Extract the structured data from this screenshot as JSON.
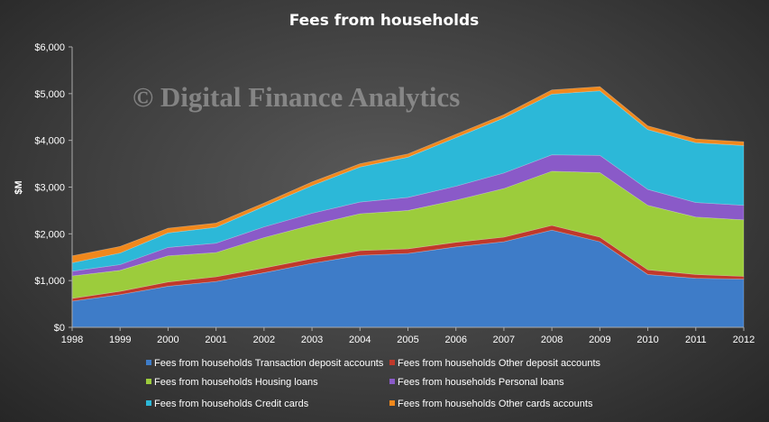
{
  "chart_data": {
    "type": "area",
    "stacked": true,
    "title": "Fees from households",
    "ylabel": "$M",
    "xlabel": "",
    "x": [
      "1998",
      "1999",
      "2000",
      "2001",
      "2002",
      "2003",
      "2004",
      "2005",
      "2006",
      "2007",
      "2008",
      "2009",
      "2010",
      "2011",
      "2012"
    ],
    "ylim": [
      0,
      6000
    ],
    "yticks": [
      0,
      1000,
      2000,
      3000,
      4000,
      5000,
      6000
    ],
    "ytick_labels": [
      "$0",
      "$1,000",
      "$2,000",
      "$3,000",
      "$4,000",
      "$5,000",
      "$6,000"
    ],
    "grid": false,
    "legend_position": "bottom",
    "series": [
      {
        "name": "Fees from households Transaction deposit accounts",
        "color": "#3e7cc8",
        "values": [
          560,
          700,
          880,
          980,
          1170,
          1370,
          1540,
          1580,
          1720,
          1830,
          2080,
          1830,
          1130,
          1050,
          1030
        ]
      },
      {
        "name": "Fees from households Other deposit accounts",
        "color": "#c0392b",
        "values": [
          60,
          70,
          90,
          100,
          100,
          100,
          100,
          100,
          100,
          100,
          100,
          100,
          100,
          80,
          60
        ]
      },
      {
        "name": "Fees from households Housing loans",
        "color": "#9ccc3c",
        "values": [
          480,
          450,
          560,
          520,
          650,
          720,
          790,
          820,
          900,
          1040,
          1160,
          1380,
          1380,
          1230,
          1210
        ]
      },
      {
        "name": "Fees from households Personal loans",
        "color": "#8a5ac8",
        "values": [
          100,
          120,
          180,
          200,
          230,
          250,
          250,
          280,
          300,
          330,
          350,
          370,
          340,
          310,
          310
        ]
      },
      {
        "name": "Fees from households Credit cards",
        "color": "#2cb8d8",
        "values": [
          180,
          250,
          310,
          340,
          440,
          590,
          750,
          860,
          1040,
          1180,
          1300,
          1380,
          1280,
          1280,
          1280
        ]
      },
      {
        "name": "Fees from households Other cards accounts",
        "color": "#f0881c",
        "values": [
          150,
          140,
          100,
          90,
          70,
          80,
          70,
          70,
          70,
          70,
          90,
          90,
          80,
          80,
          80
        ]
      }
    ]
  },
  "watermark": "© Digital Finance Analytics"
}
